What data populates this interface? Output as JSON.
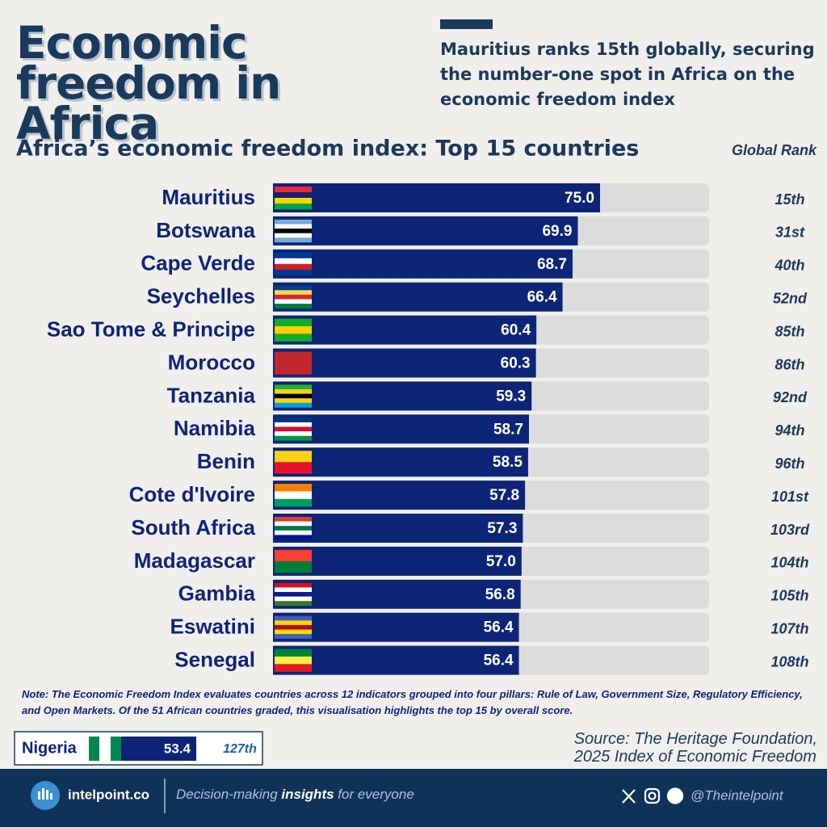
{
  "header": {
    "title": "Economic freedom in Africa",
    "subtitle": "Mauritius ranks 15th globally, securing the number-one spot in Africa on the economic freedom index"
  },
  "chart_data": {
    "type": "bar",
    "orientation": "horizontal",
    "title": "Africa’s economic freedom index: Top 15 countries",
    "rank_header": "Global Rank",
    "categories": [
      "Mauritius",
      "Botswana",
      "Cape Verde",
      "Seychelles",
      "Sao Tome & Principe",
      "Morocco",
      "Tanzania",
      "Namibia",
      "Benin",
      "Cote d'Ivoire",
      "South Africa",
      "Madagascar",
      "Gambia",
      "Eswatini",
      "Senegal"
    ],
    "values": [
      75.0,
      69.9,
      68.7,
      66.4,
      60.4,
      60.3,
      59.3,
      58.7,
      58.5,
      57.8,
      57.3,
      57.0,
      56.8,
      56.4,
      56.4
    ],
    "value_labels": [
      "75.0",
      "69.9",
      "68.7",
      "66.4",
      "60.4",
      "60.3",
      "59.3",
      "58.7",
      "58.5",
      "57.8",
      "57.3",
      "57.0",
      "56.8",
      "56.4",
      "56.4"
    ],
    "ranks": [
      "15th",
      "31st",
      "40th",
      "52nd",
      "85th",
      "86th",
      "92nd",
      "94th",
      "96th",
      "101st",
      "103rd",
      "104th",
      "105th",
      "107th",
      "108th"
    ],
    "xlim": [
      0,
      100
    ],
    "color": "#0d2577",
    "track_color": "#dcdcdc",
    "highlight": {
      "name": "Nigeria",
      "value": 53.4,
      "value_label": "53.4",
      "rank": "127th"
    }
  },
  "note": "Note: The Economic Freedom Index evaluates countries across 12 indicators grouped into four pillars: Rule of Law, Government Size, Regulatory Efficiency, and Open Markets. Of the 51 African countries graded, this visualisation highlights the top 15 by overall score.",
  "source": [
    "Source: The Heritage Foundation,",
    "2025 Index of Economic Freedom"
  ],
  "footer": {
    "brand": "intelpoint.co",
    "tagline": [
      "Decision-making ",
      "insights",
      " for everyone"
    ],
    "handle": "@Theintelpoint"
  }
}
